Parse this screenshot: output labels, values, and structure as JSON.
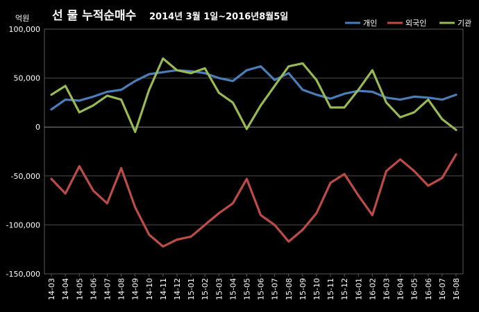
{
  "chart_data": {
    "type": "line",
    "title_main": "선 물 누적순매수",
    "title_sub": "2014년 3월 1일~2016년8월5일",
    "unit_label": "억원",
    "ylim": [
      -150000,
      100000
    ],
    "y_ticks": [
      100000,
      50000,
      0,
      -50000,
      -100000,
      -150000
    ],
    "y_tick_labels": [
      "100,000",
      "50,000",
      "0",
      "-50,000",
      "-100,000",
      "-150,000"
    ],
    "x_tick_labels": [
      "14-03",
      "14-04",
      "14-05",
      "14-06",
      "14-07",
      "14-08",
      "14-09",
      "14-10",
      "14-11",
      "14-12",
      "15-01",
      "15-02",
      "15-03",
      "15-04",
      "15-05",
      "15-06",
      "15-07",
      "15-08",
      "15-09",
      "15-10",
      "15-11",
      "15-12",
      "16-01",
      "16-02",
      "16-03",
      "16-04",
      "16-05",
      "16-06",
      "16-07",
      "16-08"
    ],
    "grid": "horizontal",
    "legend_position": "top-right",
    "series": [
      {
        "name": "개인",
        "color": "#4A7EBB",
        "values": [
          18000,
          28000,
          27000,
          31000,
          36000,
          38000,
          47000,
          54000,
          56000,
          58000,
          57000,
          55000,
          50000,
          47000,
          58000,
          62000,
          48000,
          55000,
          38000,
          33000,
          29000,
          34000,
          37000,
          36000,
          30000,
          28000,
          31000,
          30000,
          28000,
          33000
        ]
      },
      {
        "name": "외국인",
        "color": "#BE4B48",
        "values": [
          -53000,
          -68000,
          -40000,
          -65000,
          -78000,
          -42000,
          -82000,
          -110000,
          -122000,
          -115000,
          -112000,
          -100000,
          -88000,
          -78000,
          -53000,
          -90000,
          -100000,
          -117000,
          -105000,
          -88000,
          -57000,
          -48000,
          -70000,
          -90000,
          -45000,
          -33000,
          -45000,
          -60000,
          -52000,
          -28000
        ]
      },
      {
        "name": "기관",
        "color": "#98B954",
        "values": [
          33000,
          42000,
          15000,
          22000,
          32000,
          28000,
          -5000,
          38000,
          70000,
          58000,
          55000,
          60000,
          35000,
          25000,
          -2000,
          22000,
          42000,
          62000,
          65000,
          48000,
          20000,
          20000,
          38000,
          58000,
          25000,
          10000,
          15000,
          28000,
          8000,
          -3000
        ]
      }
    ]
  }
}
